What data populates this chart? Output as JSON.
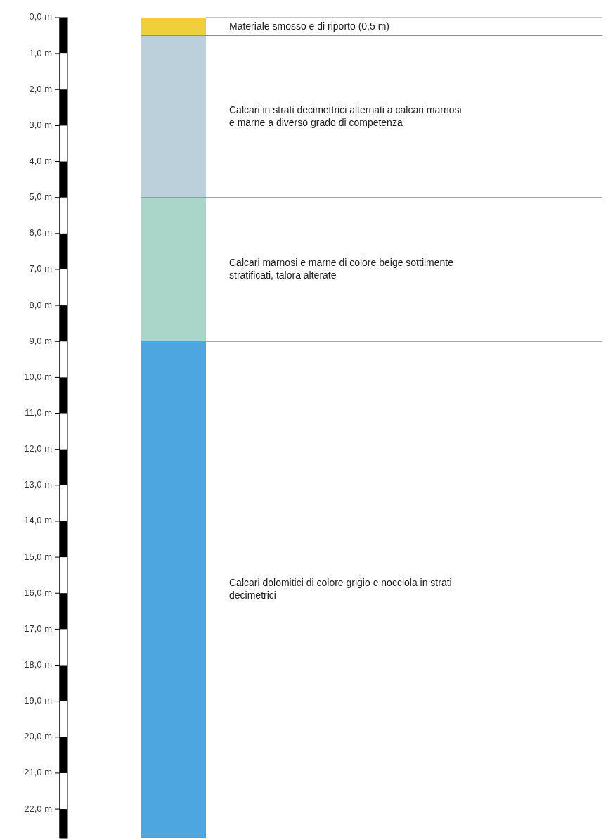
{
  "chart_data": {
    "type": "bar",
    "stacked": true,
    "categories": [
      null
    ],
    "ylim": [
      22.8,
      0
    ],
    "yticks": [
      {
        "value": 0,
        "label": "0,0 m"
      },
      {
        "value": 1,
        "label": "1,0 m"
      },
      {
        "value": 2,
        "label": "2,0 m"
      },
      {
        "value": 3,
        "label": "3,0 m"
      },
      {
        "value": 4,
        "label": "4,0 m"
      },
      {
        "value": 5,
        "label": "5,0 m"
      },
      {
        "value": 6,
        "label": "6,0 m"
      },
      {
        "value": 7,
        "label": "7,0 m"
      },
      {
        "value": 8,
        "label": "8,0 m"
      },
      {
        "value": 9,
        "label": "9,0 m"
      },
      {
        "value": 10,
        "label": "10,0 m"
      },
      {
        "value": 11,
        "label": "11,0 m"
      },
      {
        "value": 12,
        "label": "12,0 m"
      },
      {
        "value": 13,
        "label": "13,0 m"
      },
      {
        "value": 14,
        "label": "14,0 m"
      },
      {
        "value": 15,
        "label": "15,0 m"
      },
      {
        "value": 16,
        "label": "16,0 m"
      },
      {
        "value": 17,
        "label": "17,0 m"
      },
      {
        "value": 18,
        "label": "18,0 m"
      },
      {
        "value": 19,
        "label": "19,0 m"
      },
      {
        "value": 20,
        "label": "20,0 m"
      },
      {
        "value": 21,
        "label": "21,0 m"
      },
      {
        "value": 22,
        "label": "22,0 m"
      }
    ],
    "series": [
      {
        "name": "Materiale smosso e di riporto (0,5 m)",
        "color": "#f0cf3c",
        "values": [
          0.5
        ]
      },
      {
        "name": "Calcari in strati decimettrici alternati a calcari marnosi e marne a diverso grado di competenza",
        "color": "#bcd0dc",
        "values": [
          4.5
        ]
      },
      {
        "name": "Calcari marnosi e marne di colore beige sottilmente stratificati, talora alterate",
        "color": "#a9d6c9",
        "values": [
          4
        ]
      },
      {
        "name": "Calcari dolomitici di colore grigio e nocciola in strati decimetrici",
        "color": "#4ea6e0",
        "values": [
          13.8
        ]
      }
    ],
    "ref_lines": [
      {
        "axis": "y",
        "value": 0.5,
        "color": "#8c8c8c"
      },
      {
        "axis": "y",
        "value": 5,
        "color": "#8c8c8c"
      },
      {
        "axis": "y",
        "value": 9,
        "color": "#8c8c8c"
      }
    ],
    "grid": false
  }
}
